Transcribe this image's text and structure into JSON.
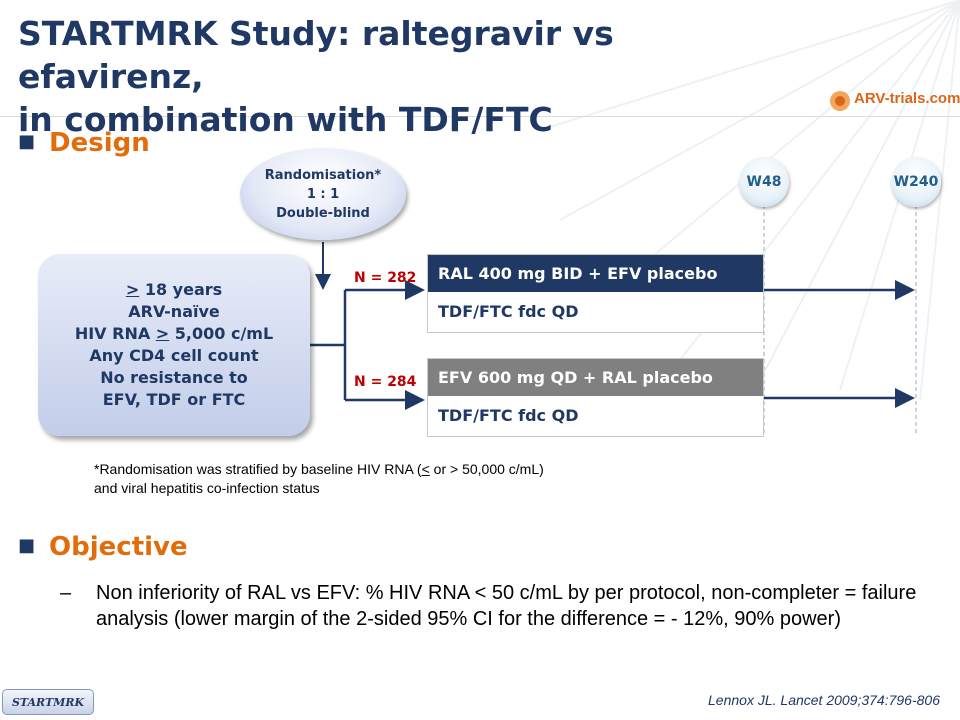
{
  "slide": {
    "title_line1": "STARTMRK Study: raltegravir vs efavirenz,",
    "title_line2": "in combination with TDF/FTC",
    "logo_text": "ARV-trials.com",
    "colors": {
      "title": "#1f3864",
      "section": "#e36c0a",
      "arm1_head": "#1f3864",
      "arm2_head": "#808080",
      "n_label": "#c00000"
    }
  },
  "design": {
    "heading": "Design",
    "randomisation": {
      "line1": "Randomisation*",
      "line2": "1 : 1",
      "line3": "Double-blind"
    },
    "criteria": {
      "age_symbol": ">",
      "age_text": " 18 years",
      "line2": "ARV-naïve",
      "line3_prefix": "HIV RNA ",
      "line3_symbol": ">",
      "line3_suffix": " 5,000 c/mL",
      "line4": "Any CD4 cell count",
      "line5": "No resistance to",
      "line6": "EFV, TDF or FTC"
    },
    "arms": [
      {
        "n": "N = 282",
        "regimen": "RAL 400 mg BID + EFV placebo",
        "backbone": "TDF/FTC fdc QD"
      },
      {
        "n": "N = 284",
        "regimen": "EFV 600 mg QD + RAL placebo",
        "backbone": "TDF/FTC fdc QD"
      }
    ],
    "timepoints": [
      "W48",
      "W240"
    ],
    "footnote": {
      "line1_prefix": "*Randomisation was stratified by baseline HIV RNA (",
      "line1_symbol": "<",
      "line1_suffix": " or > 50,000 c/mL)",
      "line2": "and viral hepatitis co-infection status"
    }
  },
  "objective": {
    "heading": "Objective",
    "dash": "–",
    "text": "Non inferiority of RAL vs EFV: % HIV RNA < 50 c/mL by per protocol, non-completer = failure analysis (lower margin of the 2-sided 95% CI for the difference =  - 12%, 90% power)"
  },
  "footer": {
    "badge": "STARTMRK",
    "reference": "Lennox JL. Lancet 2009;374:796-806"
  }
}
